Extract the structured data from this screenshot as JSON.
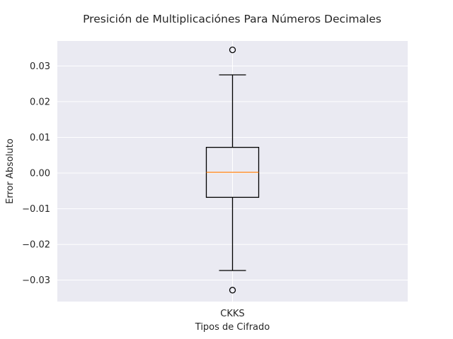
{
  "chart_data": {
    "type": "box",
    "title": "Presición de Multiplicaciónes Para Números Decimales",
    "xlabel": "Tipos de Cifrado",
    "ylabel": "Error Absoluto",
    "categories": [
      "CKKS"
    ],
    "ylim": [
      -0.036,
      0.037
    ],
    "yticks": [
      -0.03,
      -0.02,
      -0.01,
      0.0,
      0.01,
      0.02,
      0.03
    ],
    "ytick_labels": [
      "−0.03",
      "−0.02",
      "−0.01",
      "0.00",
      "0.01",
      "0.02",
      "0.03"
    ],
    "grid": true,
    "boxes": [
      {
        "category": "CKKS",
        "whisker_low": -0.0273,
        "q1": -0.0068,
        "median": 0.0002,
        "q3": 0.0072,
        "whisker_high": 0.0275,
        "outliers": [
          0.0345,
          -0.0328
        ]
      }
    ],
    "colors": {
      "plot_background": "#eaeaf2",
      "grid": "#ffffff",
      "box": "#000000",
      "median": "#ff7f0e"
    }
  }
}
